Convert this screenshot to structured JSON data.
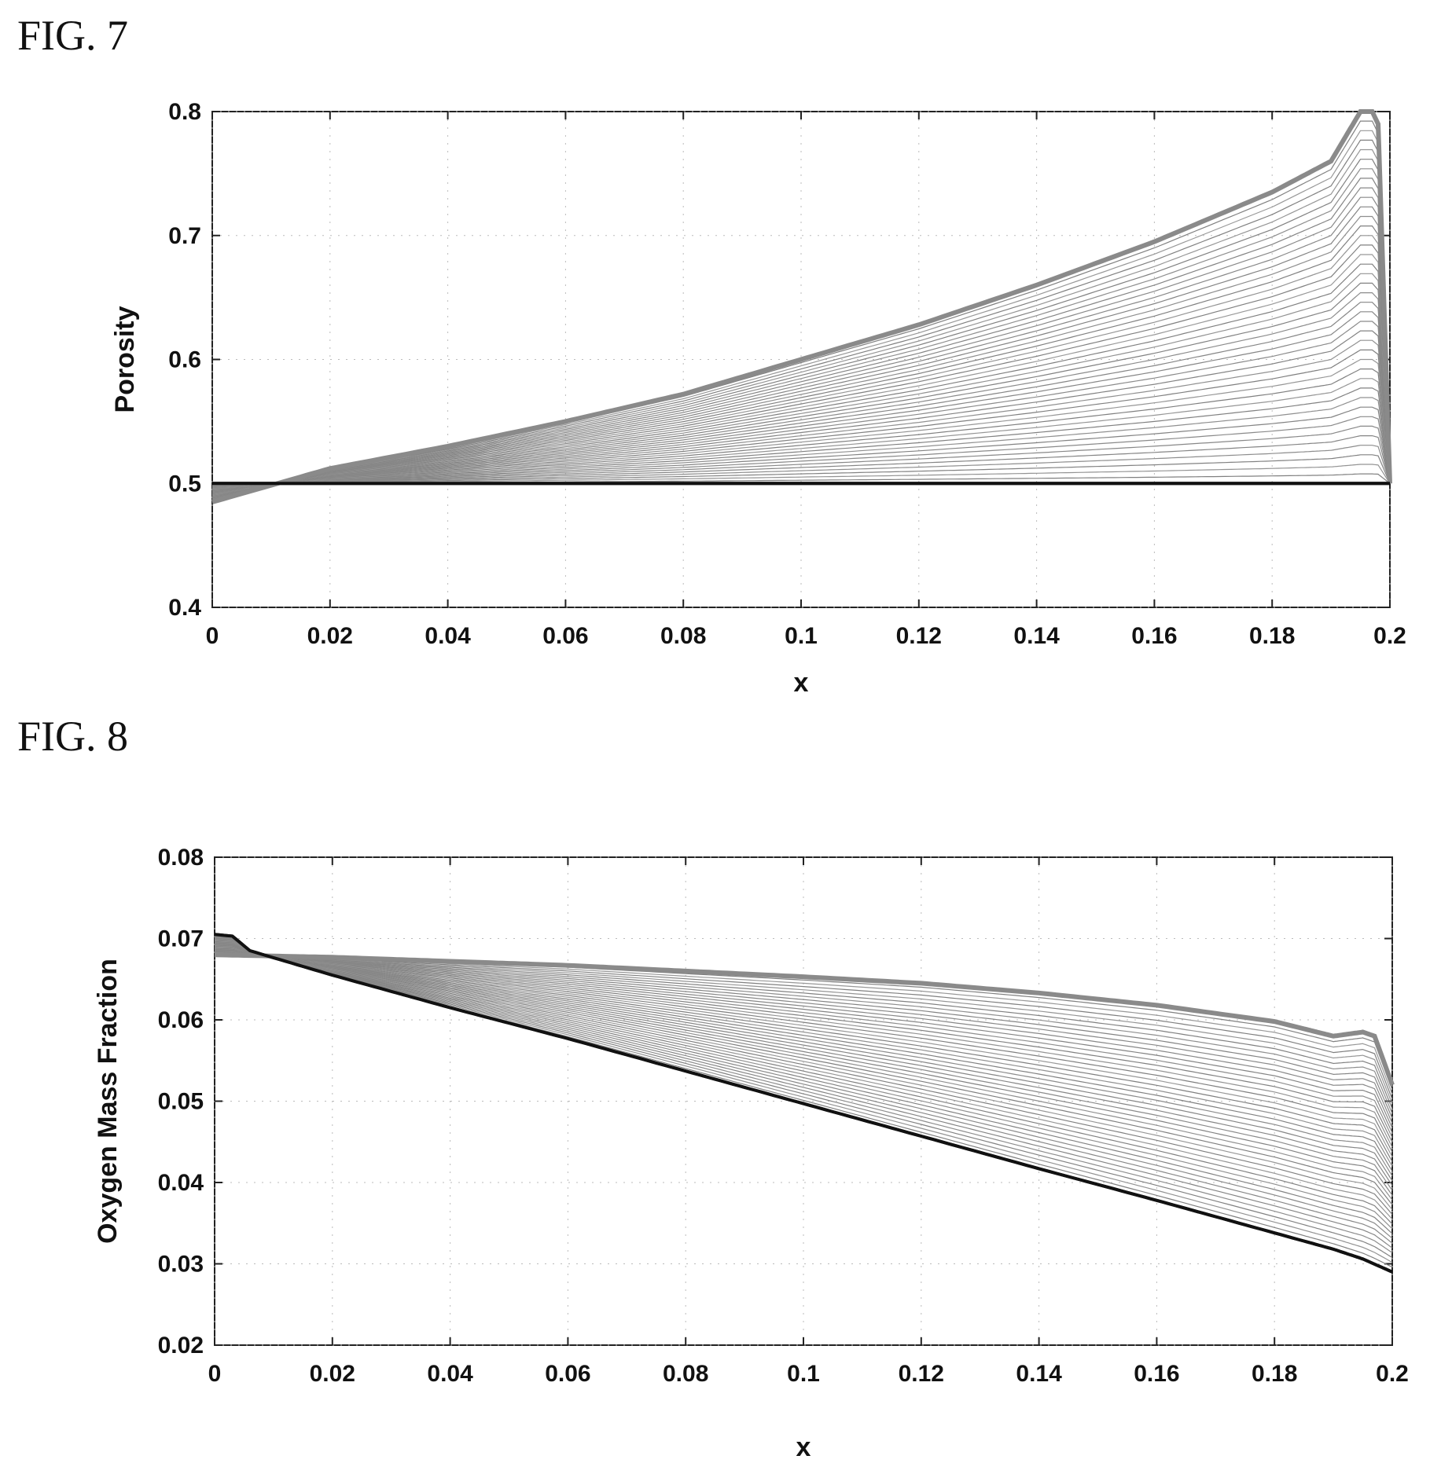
{
  "figures": [
    {
      "label": "FIG. 7"
    },
    {
      "label": "FIG. 8"
    }
  ],
  "chart_data": [
    {
      "type": "line",
      "title": "",
      "xlabel": "x",
      "ylabel": "Porosity",
      "xlim": [
        0,
        0.2
      ],
      "ylim": [
        0.4,
        0.8
      ],
      "xticks": [
        "0",
        "0.02",
        "0.04",
        "0.06",
        "0.08",
        "0.1",
        "0.12",
        "0.14",
        "0.16",
        "0.18",
        "0.2"
      ],
      "yticks": [
        "0.4",
        "0.5",
        "0.6",
        "0.7",
        "0.8"
      ],
      "grid": "dotted",
      "legend": "none",
      "series_family": {
        "count": 40,
        "line_color": "#8a8a8a",
        "initial": {
          "x": [
            0,
            0.2
          ],
          "y": [
            0.5,
            0.5
          ]
        },
        "final": {
          "x": [
            0,
            0.02,
            0.04,
            0.06,
            0.08,
            0.1,
            0.12,
            0.14,
            0.16,
            0.18,
            0.19,
            0.195,
            0.197,
            0.198,
            0.2
          ],
          "y": [
            0.485,
            0.512,
            0.53,
            0.55,
            0.572,
            0.6,
            0.628,
            0.66,
            0.695,
            0.735,
            0.76,
            0.8,
            0.8,
            0.79,
            0.5
          ]
        },
        "initial_color": "#111111",
        "final_color": "#8a8a8a"
      }
    },
    {
      "type": "line",
      "title": "",
      "xlabel": "x",
      "ylabel": "Oxygen Mass Fraction",
      "xlim": [
        0,
        0.2
      ],
      "ylim": [
        0.02,
        0.08
      ],
      "xticks": [
        "0",
        "0.02",
        "0.04",
        "0.06",
        "0.08",
        "0.1",
        "0.12",
        "0.14",
        "0.16",
        "0.18",
        "0.2"
      ],
      "yticks": [
        "0.02",
        "0.03",
        "0.04",
        "0.05",
        "0.06",
        "0.07",
        "0.08"
      ],
      "grid": "dotted",
      "legend": "none",
      "series_family": {
        "count": 40,
        "line_color": "#8a8a8a",
        "initial": {
          "x": [
            0,
            0.003,
            0.006,
            0.02,
            0.04,
            0.06,
            0.08,
            0.1,
            0.12,
            0.14,
            0.16,
            0.18,
            0.19,
            0.195,
            0.2
          ],
          "y": [
            0.0705,
            0.0703,
            0.0685,
            0.0655,
            0.0615,
            0.0577,
            0.0537,
            0.0497,
            0.0457,
            0.0417,
            0.0378,
            0.0338,
            0.0318,
            0.0306,
            0.029
          ]
        },
        "final": {
          "x": [
            0,
            0.02,
            0.04,
            0.06,
            0.08,
            0.1,
            0.12,
            0.14,
            0.16,
            0.18,
            0.19,
            0.195,
            0.197,
            0.2
          ],
          "y": [
            0.068,
            0.0677,
            0.0672,
            0.0667,
            0.066,
            0.0653,
            0.0645,
            0.0633,
            0.0618,
            0.0598,
            0.058,
            0.0585,
            0.058,
            0.052
          ]
        },
        "initial_color": "#111111",
        "final_color": "#8a8a8a"
      }
    }
  ]
}
